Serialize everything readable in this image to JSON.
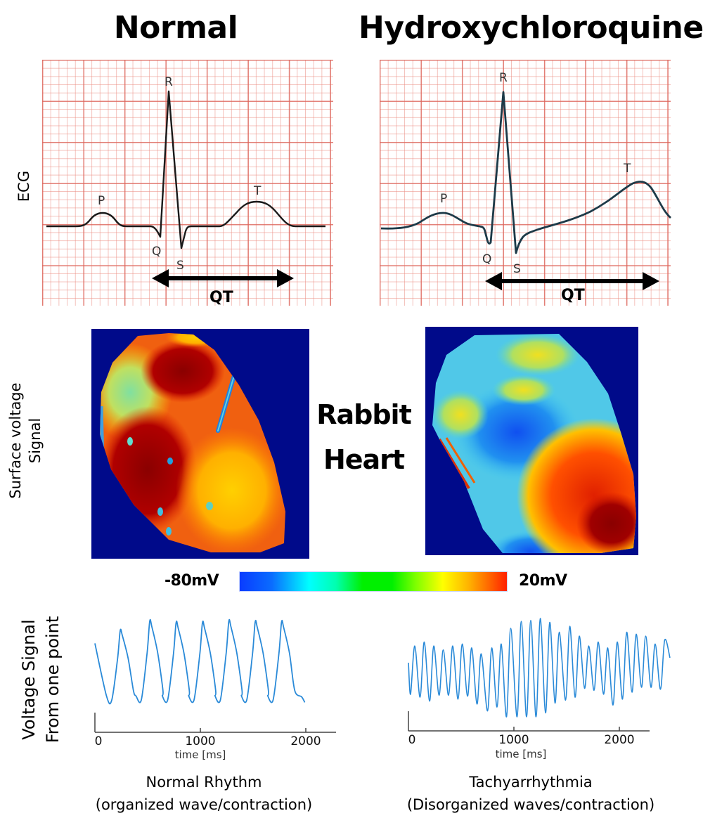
{
  "titles": {
    "normal": "Normal",
    "drug": "Hydroxychloroquine"
  },
  "row_labels": {
    "ecg": "ECG",
    "surface_line1": "Surface voltage",
    "surface_line2": "Signal",
    "voltage_line1": "Voltage  Signal",
    "voltage_line2": "From one point"
  },
  "ecg_panels": [
    {
      "id": "normal",
      "letters": {
        "P": "P",
        "Q": "Q",
        "R": "R",
        "S": "S",
        "T": "T"
      },
      "interval_label": "QT",
      "trace_color": "#1a1a1a"
    },
    {
      "id": "drug",
      "letters": {
        "P": "P",
        "Q": "Q",
        "R": "R",
        "S": "S",
        "T": "T"
      },
      "interval_label": "QT",
      "trace_color": "#1d3a48"
    }
  ],
  "center_label": {
    "line1": "Rabbit",
    "line2": "Heart"
  },
  "colorbar": {
    "min_label": "-80mV",
    "max_label": "20mV",
    "colormap": "jet"
  },
  "heart_map_colors": {
    "background": "#000a8a"
  },
  "chart_data": [
    {
      "type": "line",
      "title": "Normal Rhythm",
      "subtitle": "(organized wave/contraction)",
      "xlabel": "time [ms]",
      "ylabel": "Voltage Signal From one point",
      "xlim": [
        0,
        2300
      ],
      "x_ticks": [
        "0",
        "1000",
        "2000"
      ],
      "tick_values": [
        0,
        1000,
        2000
      ],
      "series": [
        {
          "name": "voltage",
          "color": "#2a8ad8",
          "peaks_ms": [
            240,
            520,
            770,
            1020,
            1270,
            1520,
            1770
          ],
          "peak_levels": [
            0.88,
            1.0,
            0.98,
            0.98,
            1.0,
            0.99,
            0.99
          ],
          "trough_level": 0.0,
          "start_level": 0.72,
          "end_ms": 1990
        }
      ]
    },
    {
      "type": "line",
      "title": "Tachyarrhythmia",
      "subtitle": "(Disorganized waves/contraction)",
      "xlabel": "time [ms]",
      "ylabel": "",
      "xlim": [
        0,
        2300
      ],
      "x_ticks": [
        "0",
        "1000",
        "2000"
      ],
      "tick_values": [
        0,
        1000,
        2000
      ],
      "series": [
        {
          "name": "voltage",
          "color": "#2a8ad8",
          "peaks_ms": [
            60,
            150,
            240,
            330,
            420,
            510,
            600,
            690,
            790,
            880,
            970,
            1070,
            1160,
            1250,
            1340,
            1430,
            1530,
            1620,
            1710,
            1800,
            1890,
            1980,
            2070,
            2160,
            2250,
            2340,
            2430
          ],
          "peak_levels": [
            0.72,
            0.76,
            0.72,
            0.68,
            0.72,
            0.74,
            0.7,
            0.64,
            0.7,
            0.74,
            0.9,
            0.97,
            0.98,
            1.0,
            0.96,
            0.86,
            0.92,
            0.82,
            0.72,
            0.76,
            0.7,
            0.76,
            0.86,
            0.84,
            0.82,
            0.74,
            0.78
          ],
          "trough_levels": [
            0.23,
            0.2,
            0.16,
            0.22,
            0.22,
            0.18,
            0.21,
            0.13,
            0.06,
            0.1,
            0.0,
            0.0,
            0.0,
            0.0,
            0.04,
            0.14,
            0.17,
            0.2,
            0.29,
            0.27,
            0.23,
            0.12,
            0.18,
            0.25,
            0.3,
            0.3,
            0.28
          ]
        }
      ]
    }
  ]
}
